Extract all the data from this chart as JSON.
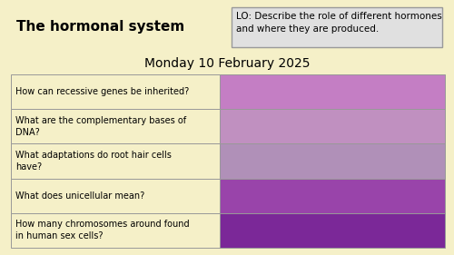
{
  "title": "The hormonal system",
  "lo_text": "LO: Describe the role of different hormones\nand where they are produced.",
  "date": "Monday 10 February 2025",
  "questions": [
    "How can recessive genes be inherited?",
    "What are the complementary bases of\nDNA?",
    "What adaptations do root hair cells\nhave?",
    "What does unicellular mean?",
    "How many chromosomes around found\nin human sex cells?"
  ],
  "row_colors": [
    "#c47ec4",
    "#c090c0",
    "#b090b8",
    "#9944aa",
    "#7b2898"
  ],
  "bg_color": "#f5f0c8",
  "table_left_bg": "#f5f0c8",
  "border_color": "#999999",
  "lo_box_bg": "#e0e0e0",
  "lo_box_border": "#999999",
  "title_fontsize": 11,
  "date_fontsize": 10,
  "question_fontsize": 7,
  "lo_fontsize": 7.5
}
